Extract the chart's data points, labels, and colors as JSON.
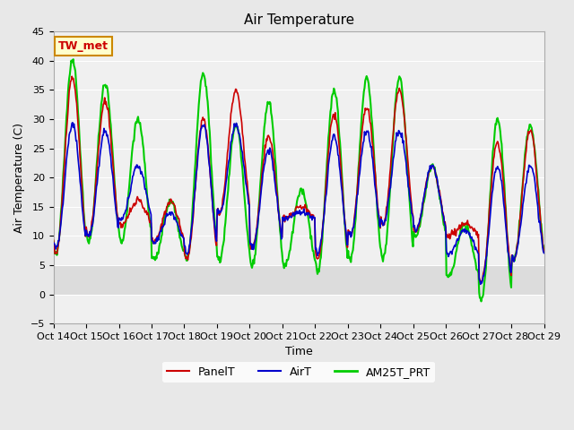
{
  "title": "Air Temperature",
  "ylabel": "Air Temperature (C)",
  "xlabel": "Time",
  "annotation": "TW_met",
  "annotation_color": "#cc0000",
  "annotation_bg": "#ffffcc",
  "annotation_border": "#cc8800",
  "ylim": [
    -5,
    45
  ],
  "yticks": [
    -5,
    0,
    5,
    10,
    15,
    20,
    25,
    30,
    35,
    40,
    45
  ],
  "x_labels": [
    "Oct 14",
    "Oct 15",
    "Oct 16",
    "Oct 17",
    "Oct 18",
    "Oct 19",
    "Oct 20",
    "Oct 21",
    "Oct 22",
    "Oct 23",
    "Oct 24",
    "Oct 25",
    "Oct 26",
    "Oct 27",
    "Oct 28",
    "Oct 29"
  ],
  "bg_color": "#e8e8e8",
  "inner_bg": "#f0f0f0",
  "line_colors": {
    "PanelT": "#cc0000",
    "AirT": "#0000cc",
    "AM25T_PRT": "#00cc00"
  },
  "line_widths": {
    "PanelT": 1.2,
    "AirT": 1.2,
    "AM25T_PRT": 1.5
  },
  "grid_color": "#ffffff",
  "shaded_band_low": 0,
  "shaded_band_high": 5,
  "shaded_band_color": "#d0d0d0",
  "day_peaks_panel": [
    37,
    33,
    16,
    16,
    30,
    35,
    27,
    15,
    31,
    32,
    35,
    22,
    12,
    26,
    28
  ],
  "day_mins_panel": [
    7,
    10,
    12,
    9,
    6,
    14,
    8,
    13,
    6,
    10,
    12,
    11,
    10,
    2,
    6
  ],
  "day_peaks_air": [
    29,
    28,
    22,
    14,
    29,
    29,
    25,
    14,
    27,
    28,
    28,
    22,
    11,
    22,
    22
  ],
  "day_mins_air": [
    8,
    10,
    13,
    9,
    7,
    14,
    8,
    13,
    7,
    10,
    12,
    11,
    7,
    2,
    6
  ],
  "day_peaks_am25": [
    40,
    36,
    30,
    16,
    38,
    29,
    33,
    18,
    35,
    37,
    37,
    22,
    12,
    30,
    29
  ],
  "day_mins_am25": [
    7,
    9,
    9,
    6,
    6,
    6,
    5,
    5,
    4,
    6,
    6,
    10,
    3,
    -1,
    6
  ]
}
